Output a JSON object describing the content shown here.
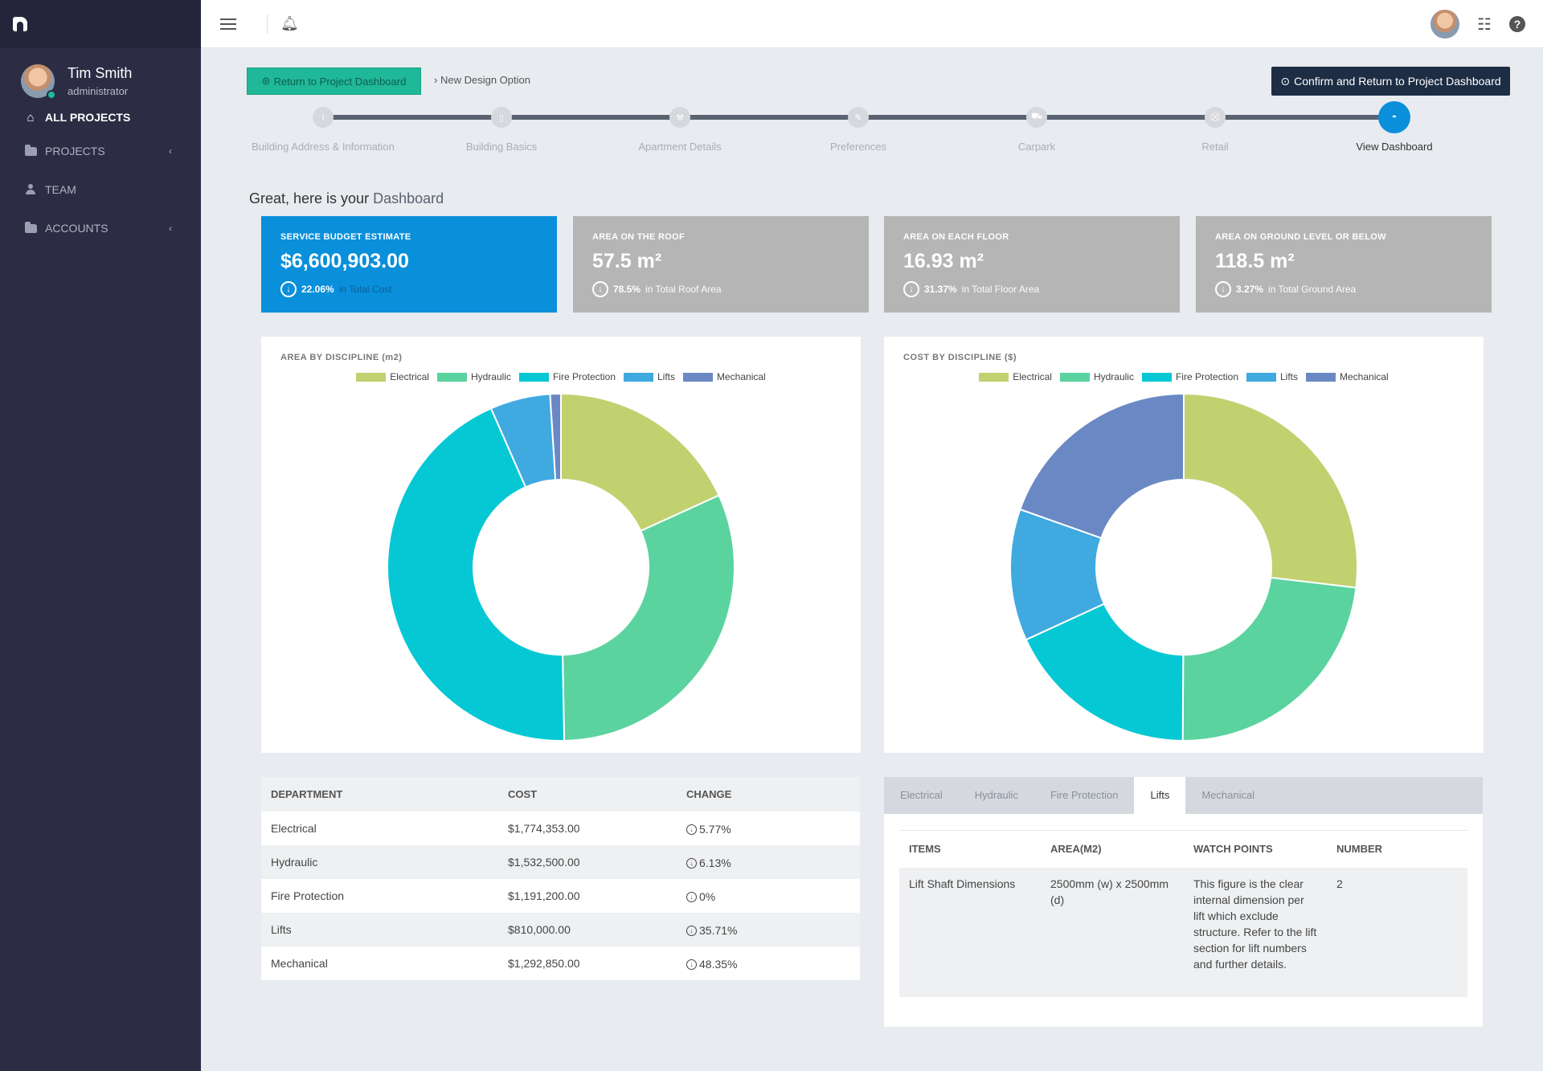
{
  "sidebar": {
    "user": {
      "name": "Tim Smith",
      "role": "administrator"
    },
    "nav": [
      {
        "label": "ALL PROJECTS"
      },
      {
        "label": "PROJECTS"
      },
      {
        "label": "TEAM"
      },
      {
        "label": "ACCOUNTS"
      }
    ]
  },
  "header": {
    "return_label": "Return to Project Dashboard",
    "breadcrumb": "New Design Option",
    "confirm_label": "Confirm and Return to Project Dashboard"
  },
  "stepper": {
    "steps": [
      {
        "label": "Building Address & Information",
        "icon": "info-icon"
      },
      {
        "label": "Building Basics",
        "icon": "building-icon"
      },
      {
        "label": "Apartment Details",
        "icon": "wrench-icon"
      },
      {
        "label": "Preferences",
        "icon": "pencil-icon"
      },
      {
        "label": "Carpark",
        "icon": "car-icon"
      },
      {
        "label": "Retail",
        "icon": "cart-icon"
      },
      {
        "label": "View Dashboard",
        "icon": "dashboard-icon"
      }
    ],
    "active_index": 6
  },
  "dashboard": {
    "title_prefix": "Great, here is your",
    "title_highlight": "Dashboard"
  },
  "kpis": [
    {
      "label": "SERVICE BUDGET ESTIMATE",
      "value": "$6,600,903.00",
      "pct": "22.06%",
      "desc": "in Total Cost"
    },
    {
      "label": "AREA ON THE ROOF",
      "value": "57.5 m²",
      "pct": "78.5%",
      "desc": "in Total Roof Area"
    },
    {
      "label": "AREA ON EACH FLOOR",
      "value": "16.93 m²",
      "pct": "31.37%",
      "desc": "in Total Floor Area"
    },
    {
      "label": "AREA ON GROUND LEVEL OR BELOW",
      "value": "118.5 m²",
      "pct": "3.27%",
      "desc": "in Total Ground Area"
    }
  ],
  "chart_data": [
    {
      "type": "pie",
      "title": "AREA BY DISCIPLINE (m2)",
      "categories": [
        "Electrical",
        "Hydraulic",
        "Fire Protection",
        "Lifts",
        "Mechanical"
      ],
      "values": [
        18.2,
        31.5,
        43.7,
        5.6,
        1.0
      ],
      "colors": [
        "#c1d16f",
        "#5bd39f",
        "#05c8d4",
        "#40a9e0",
        "#6a89c4"
      ],
      "legend": "top-center"
    },
    {
      "type": "pie",
      "title": "COST BY DISCIPLINE ($)",
      "categories": [
        "Electrical",
        "Hydraulic",
        "Fire Protection",
        "Lifts",
        "Mechanical"
      ],
      "values": [
        1774353,
        1532500,
        1191200,
        810000,
        1292850
      ],
      "colors": [
        "#c1d16f",
        "#5bd39f",
        "#05c8d4",
        "#40a9e0",
        "#6a89c4"
      ],
      "legend": "top-center"
    }
  ],
  "department_table": {
    "headers": [
      "DEPARTMENT",
      "COST",
      "CHANGE"
    ],
    "rows": [
      {
        "department": "Electrical",
        "cost": "$1,774,353.00",
        "change": "5.77%"
      },
      {
        "department": "Hydraulic",
        "cost": "$1,532,500.00",
        "change": "6.13%"
      },
      {
        "department": "Fire Protection",
        "cost": "$1,191,200.00",
        "change": "0%"
      },
      {
        "department": "Lifts",
        "cost": "$810,000.00",
        "change": "35.71%"
      },
      {
        "department": "Mechanical",
        "cost": "$1,292,850.00",
        "change": "48.35%"
      }
    ]
  },
  "discipline_tabs": {
    "tabs": [
      "Electrical",
      "Hydraulic",
      "Fire Protection",
      "Lifts",
      "Mechanical"
    ],
    "active_index": 3,
    "headers": [
      "ITEMS",
      "AREA(M2)",
      "WATCH POINTS",
      "NUMBER"
    ],
    "rows": [
      {
        "item": "Lift Shaft Dimensions",
        "area": "2500mm (w) x 2500mm (d)",
        "watch": "This figure is the clear internal dimension per lift which exclude structure. Refer to the lift section for lift numbers and further details.",
        "number": "2"
      }
    ]
  }
}
